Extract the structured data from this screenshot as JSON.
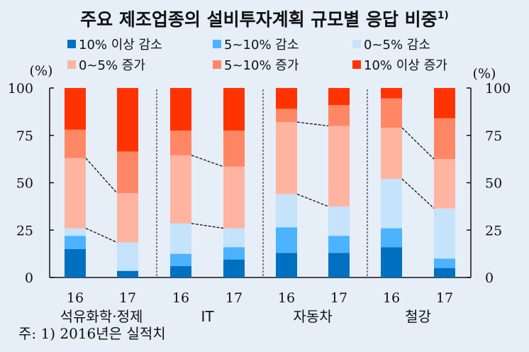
{
  "chart_data": {
    "type": "bar",
    "stacked": true,
    "title": "주요 제조업종의 설비투자계획 규모별 응답 비중",
    "title_superscript": "1)",
    "ylabel_left": "(%)",
    "ylabel_right": "(%)",
    "ylim": [
      0,
      100
    ],
    "yticks": [
      0,
      25,
      50,
      75,
      100
    ],
    "grid": false,
    "legend_position": "top",
    "groups": [
      "석유화학·정제",
      "IT",
      "자동차",
      "철강"
    ],
    "categories": [
      "16",
      "17",
      "16",
      "17",
      "16",
      "17",
      "16",
      "17"
    ],
    "series": [
      {
        "name": "10% 이상 감소",
        "color": "#0070c0",
        "values": [
          15,
          3.5,
          6,
          9.5,
          13,
          13,
          16,
          5
        ]
      },
      {
        "name": "5~10% 감소",
        "color": "#4db3ff",
        "values": [
          7,
          0,
          6.5,
          6.5,
          13.5,
          9,
          10,
          5
        ]
      },
      {
        "name": "0~5% 감소",
        "color": "#c5e3fa",
        "values": [
          4,
          15,
          16,
          10,
          17.5,
          15.5,
          26,
          26.5
        ]
      },
      {
        "name": "0~5% 증가",
        "color": "#ffb4a2",
        "values": [
          37,
          26,
          36,
          32.5,
          38,
          42.5,
          27,
          26
        ]
      },
      {
        "name": "5~10% 증가",
        "color": "#ff8766",
        "values": [
          15,
          22,
          13,
          19,
          7,
          11,
          15.5,
          21.5
        ]
      },
      {
        "name": "10% 이상 증가",
        "color": "#ff3300",
        "values": [
          22,
          33.5,
          22.5,
          22.5,
          11,
          9,
          5.5,
          16
        ]
      }
    ],
    "note": "주: 1) 2016년은 실적치"
  }
}
